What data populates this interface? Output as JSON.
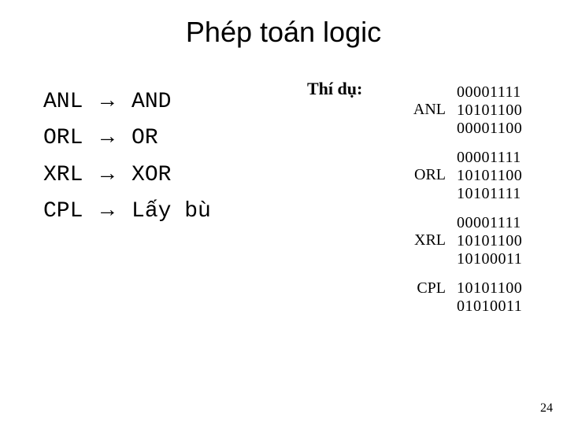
{
  "title": "Phép toán logic",
  "ops": [
    {
      "mnemonic": "ANL",
      "arrow": "→",
      "meaning": "AND"
    },
    {
      "mnemonic": "ORL",
      "arrow": "→",
      "meaning": "OR"
    },
    {
      "mnemonic": "XRL",
      "arrow": "→",
      "meaning": "XOR"
    },
    {
      "mnemonic": "CPL",
      "arrow": "→",
      "meaning": "Lấy bù"
    }
  ],
  "examples": {
    "heading": "Thí dụ:",
    "items": [
      {
        "label": "ANL",
        "lines": [
          "00001111",
          "10101100",
          "00001100"
        ]
      },
      {
        "label": "ORL",
        "lines": [
          "00001111",
          "10101100",
          "10101111"
        ]
      },
      {
        "label": "XRL",
        "lines": [
          "00001111",
          "10101100",
          "10100011"
        ]
      },
      {
        "label": "CPL",
        "lines": [
          "10101100",
          "01010011"
        ]
      }
    ]
  },
  "page_number": "24"
}
